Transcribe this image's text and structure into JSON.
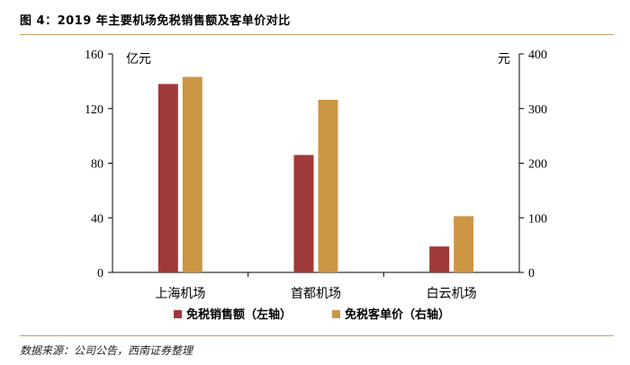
{
  "header": {
    "title": "图 4：2019 年主要机场免税销售额及客单价对比"
  },
  "footer": {
    "source": "数据来源：公司公告，西南证券整理"
  },
  "chart_data": {
    "type": "bar",
    "categories": [
      "上海机场",
      "首都机场",
      "白云机场"
    ],
    "series": [
      {
        "name": "免税销售额（左轴）",
        "axis": "left",
        "values": [
          138,
          86,
          19
        ],
        "color": "#a0393a"
      },
      {
        "name": "免税客单价（右轴）",
        "axis": "right",
        "values": [
          358,
          316,
          103
        ],
        "color": "#cc9645"
      }
    ],
    "left_axis": {
      "unit": "亿元",
      "ylim": [
        0,
        160
      ],
      "ticks": [
        "0",
        "40",
        "80",
        "120",
        "160"
      ]
    },
    "right_axis": {
      "unit": "元",
      "ylim": [
        0,
        400
      ],
      "ticks": [
        "0",
        "100",
        "200",
        "300",
        "400"
      ]
    },
    "legend": {
      "position": "bottom"
    },
    "grid": false
  }
}
